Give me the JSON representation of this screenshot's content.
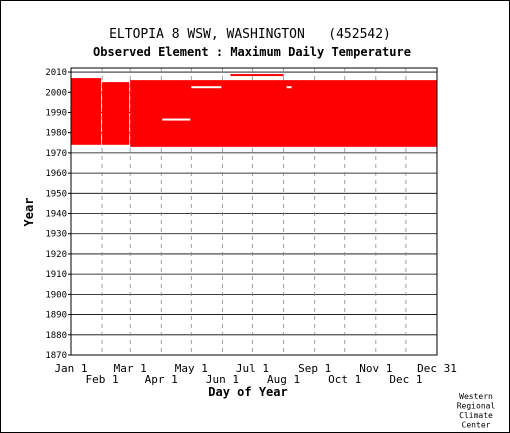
{
  "chart_data": {
    "type": "bar",
    "title": "ELTOPIA 8 WSW, WASHINGTON   (452542)",
    "subtitle": "Observed Element : Maximum Daily Temperature",
    "xlabel": "Day of Year",
    "ylabel": "Year",
    "credit": [
      "Western",
      "Regional",
      "Climate",
      "Center"
    ],
    "ylim": [
      1870,
      2012
    ],
    "xlim": [
      1,
      366
    ],
    "y_ticks": [
      1870,
      1880,
      1890,
      1900,
      1910,
      1920,
      1930,
      1940,
      1950,
      1960,
      1970,
      1980,
      1990,
      2000,
      2010
    ],
    "x_ticks_upper": [
      {
        "label": "Jan 1",
        "day": 1
      },
      {
        "label": "Mar 1",
        "day": 60
      },
      {
        "label": "May 1",
        "day": 121
      },
      {
        "label": "Jul 1",
        "day": 182
      },
      {
        "label": "Sep 1",
        "day": 244
      },
      {
        "label": "Nov 1",
        "day": 305
      },
      {
        "label": "Dec 31",
        "day": 366
      }
    ],
    "x_ticks_lower": [
      {
        "label": "Feb 1",
        "day": 32
      },
      {
        "label": "Apr 1",
        "day": 91
      },
      {
        "label": "Jun 1",
        "day": 152
      },
      {
        "label": "Aug 1",
        "day": 213
      },
      {
        "label": "Oct 1",
        "day": 274
      },
      {
        "label": "Dec 1",
        "day": 335
      }
    ],
    "grid": true,
    "color": "#ff0000",
    "coverage": [
      {
        "day_start": 1,
        "day_end": 31,
        "year_start": 1974,
        "year_end": 2007
      },
      {
        "day_start": 32,
        "day_end": 59,
        "year_start": 1974,
        "year_end": 2005
      },
      {
        "day_start": 60,
        "day_end": 366,
        "year_start": 1973,
        "year_end": 2006
      },
      {
        "day_start": 160,
        "day_end": 213,
        "year_start": 2008.5,
        "year_end": 2009
      }
    ],
    "gaps": [
      {
        "day_start": 92,
        "day_end": 120,
        "year_start": 1986,
        "year_end": 1987
      },
      {
        "day_start": 121,
        "day_end": 151,
        "year_start": 2002,
        "year_end": 2003
      },
      {
        "day_start": 216,
        "day_end": 221,
        "year_start": 2002,
        "year_end": 2003
      }
    ]
  }
}
